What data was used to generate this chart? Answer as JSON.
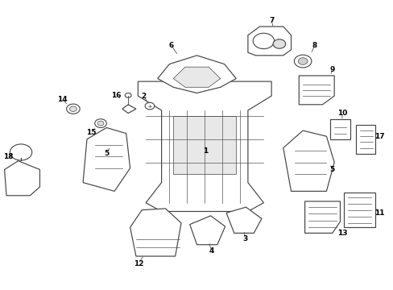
{
  "bg_color": "#ffffff",
  "line_color": "#444444",
  "label_color": "#000000"
}
